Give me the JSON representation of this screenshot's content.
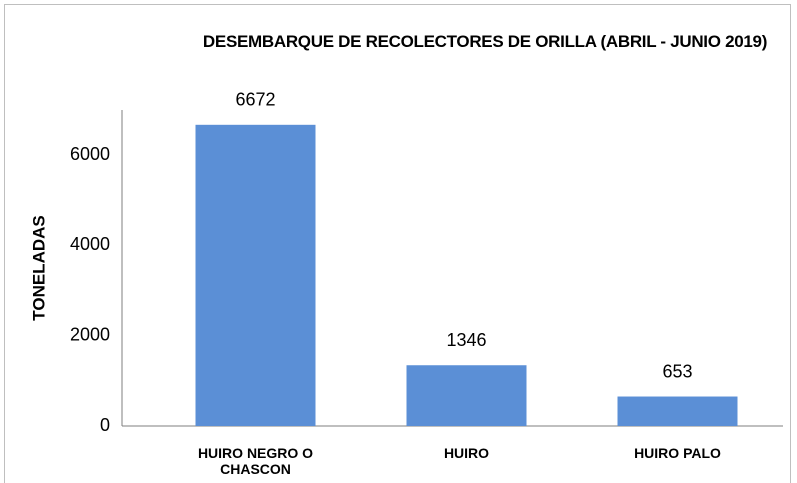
{
  "chart_data": {
    "type": "bar",
    "title": "DESEMBARQUE DE RECOLECTORES DE ORILLA (ABRIL - JUNIO 2019)",
    "y_label": "TONELADAS",
    "categories": [
      "HUIRO NEGRO O CHASCON",
      "HUIRO",
      "HUIRO PALO"
    ],
    "values": [
      6672,
      1346,
      653
    ],
    "color": "#5b8fd6",
    "ylim": [
      0,
      7000
    ],
    "yticks": [
      0,
      2000,
      4000,
      6000
    ],
    "grid": false
  }
}
